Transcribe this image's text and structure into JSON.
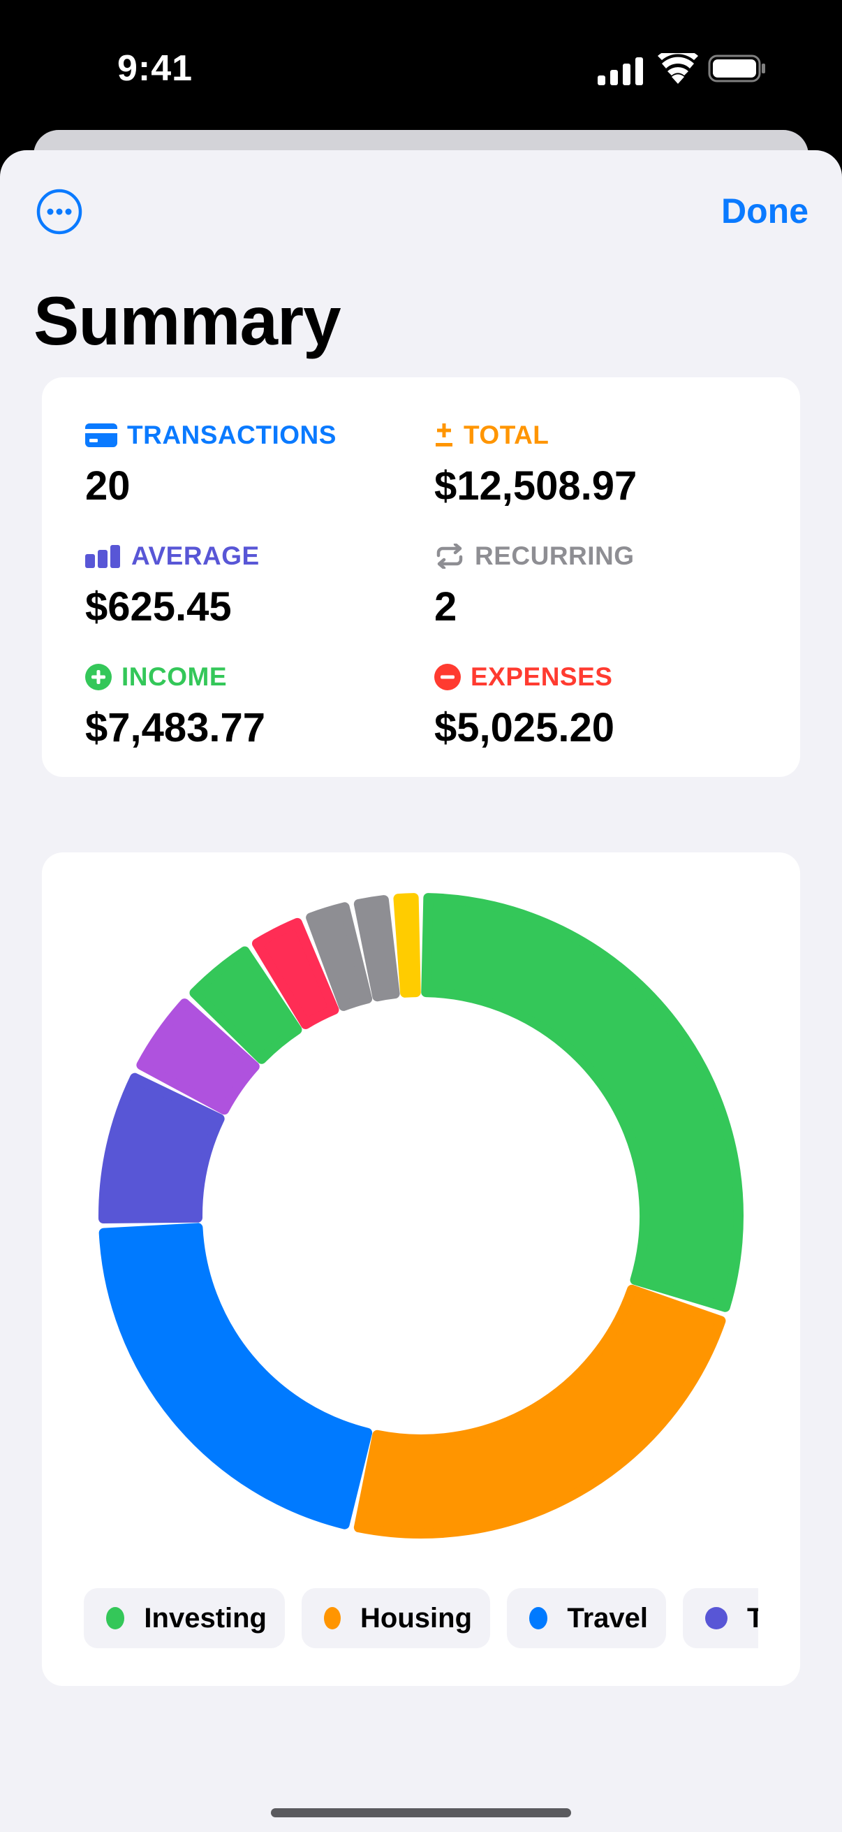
{
  "status_bar": {
    "time": "9:41"
  },
  "header": {
    "done_label": "Done",
    "title": "Summary"
  },
  "stats": [
    {
      "key": "transactions",
      "label": "TRANSACTIONS",
      "value": "20",
      "color": "#0a7aff",
      "icon": "credit-card-icon"
    },
    {
      "key": "total",
      "label": "TOTAL",
      "value": "$12,508.97",
      "color": "#ff9500",
      "icon": "plus-minus-icon"
    },
    {
      "key": "average",
      "label": "AVERAGE",
      "value": "$625.45",
      "color": "#5856d6",
      "icon": "bar-chart-icon"
    },
    {
      "key": "recurring",
      "label": "RECURRING",
      "value": "2",
      "color": "#8e8e93",
      "icon": "repeat-icon"
    },
    {
      "key": "income",
      "label": "INCOME",
      "value": "$7,483.77",
      "color": "#34c759",
      "icon": "plus-circle-icon"
    },
    {
      "key": "expenses",
      "label": "EXPENSES",
      "value": "$5,025.20",
      "color": "#ff3b30",
      "icon": "minus-circle-icon"
    }
  ],
  "chart_data": {
    "type": "pie",
    "style": "donut",
    "slices": [
      {
        "category": "Investing",
        "value": 0.3,
        "color": "#34c759"
      },
      {
        "category": "Housing",
        "value": 0.235,
        "color": "#ff9500"
      },
      {
        "category": "Travel",
        "value": 0.21,
        "color": "#007aff"
      },
      {
        "category": "T",
        "value": 0.08,
        "color": "#5856d6"
      },
      {
        "category": "",
        "value": 0.045,
        "color": "#af52de"
      },
      {
        "category": "",
        "value": 0.04,
        "color": "#34c759"
      },
      {
        "category": "",
        "value": 0.03,
        "color": "#ff2d55"
      },
      {
        "category": "",
        "value": 0.025,
        "color": "#8e8e93"
      },
      {
        "category": "",
        "value": 0.02,
        "color": "#8e8e93"
      },
      {
        "category": "",
        "value": 0.015,
        "color": "#ffcc00"
      }
    ],
    "legend": [
      {
        "label": "Investing",
        "color": "#34c759"
      },
      {
        "label": "Housing",
        "color": "#ff9500"
      },
      {
        "label": "Travel",
        "color": "#007aff"
      },
      {
        "label": "T",
        "color": "#5856d6"
      }
    ]
  }
}
